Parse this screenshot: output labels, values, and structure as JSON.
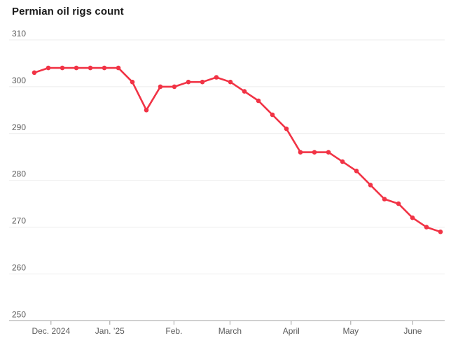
{
  "title": "Permian oil rigs count",
  "colors": {
    "line": "#f13345",
    "grid": "#ececec",
    "axis_line": "#a0a0a0",
    "tick_text": "#5c5c5c",
    "title_text": "#1b1b1b",
    "background": "#ffffff"
  },
  "chart_data": {
    "type": "line",
    "title": "Permian oil rigs count",
    "x_unit": "week",
    "grid": "horizontal",
    "legend": "none",
    "ylim": [
      250,
      310
    ],
    "y_ticks": [
      310,
      300,
      290,
      280,
      270,
      260,
      250
    ],
    "xlim_weeks": [
      -1.8,
      29.3
    ],
    "x_tick_labels": [
      "Dec. 2024",
      "Jan. ’25",
      "Feb.",
      "March",
      "April",
      "May",
      "June"
    ],
    "x_tick_positions_weeks": [
      1.19,
      5.39,
      9.97,
      13.97,
      18.34,
      22.59,
      27.02
    ],
    "series": [
      {
        "name": "Permian oil rigs count",
        "marker": "circle",
        "values": [
          303,
          304,
          304,
          304,
          304,
          304,
          304,
          301,
          295,
          300,
          300,
          301,
          301,
          302,
          301,
          299,
          297,
          294,
          291,
          286,
          286,
          286,
          284,
          282,
          279,
          276,
          275,
          272,
          270,
          269
        ]
      }
    ]
  }
}
